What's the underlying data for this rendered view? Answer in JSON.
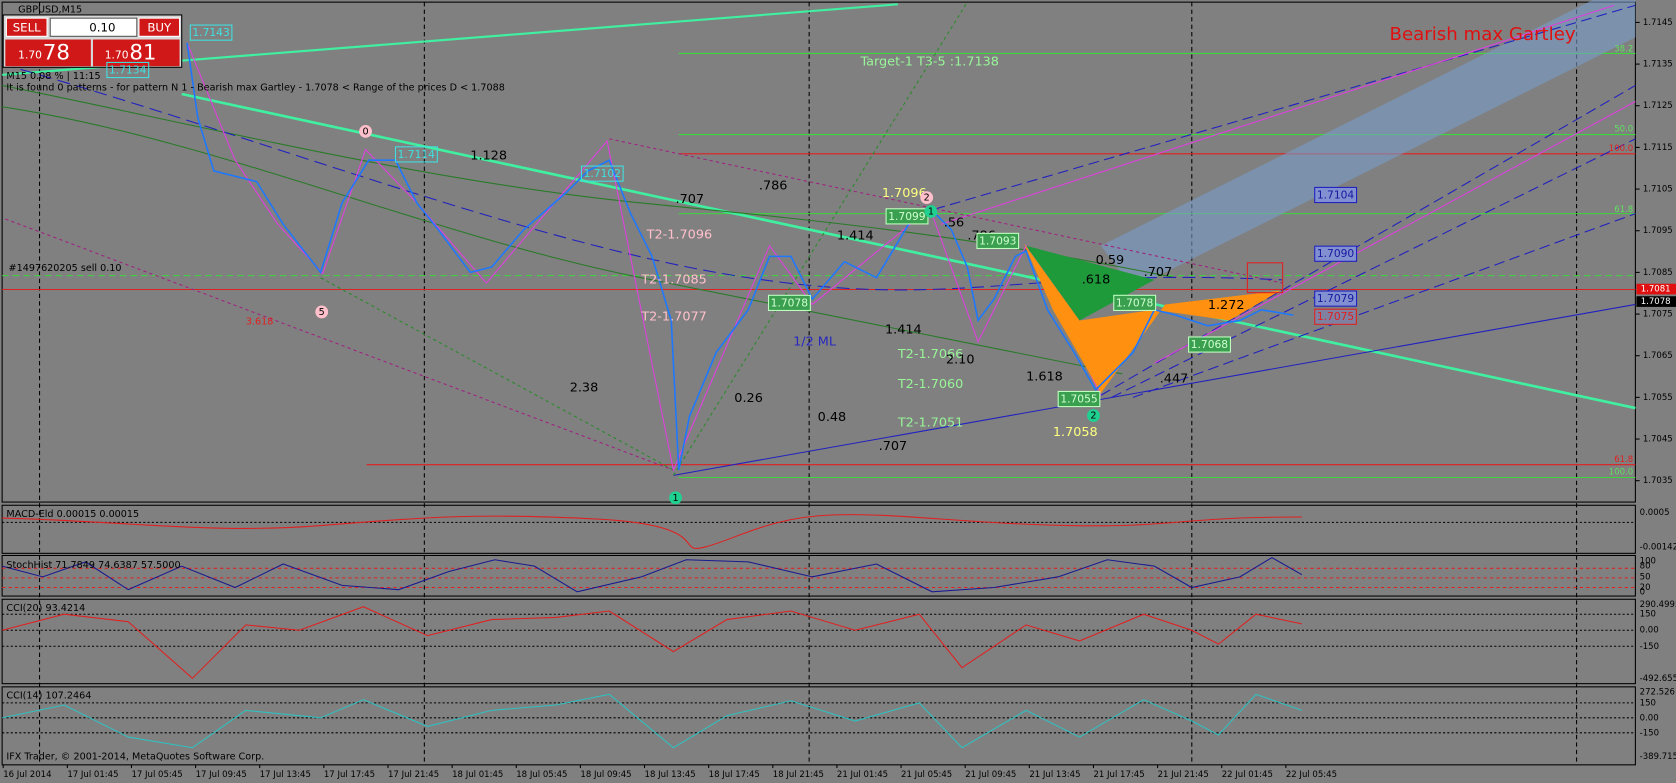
{
  "window": {
    "symbol": "GBPUSD,M15",
    "trade_panel": {
      "sell": "SELL",
      "buy": "BUY",
      "lot": "0.10",
      "sell_small": "1.70",
      "sell_big": "78",
      "buy_small": "1.70",
      "buy_big": "81"
    },
    "info_line_1": "M15 0.08 % | 11:15",
    "info_line_2": "It is found 0 patterns  -  for pattern N 1 - Bearish max Gartley  - 1.7078 < Range of the prices D < 1.7088",
    "pattern_title": "Bearish max Gartley"
  },
  "price_axis": {
    "ticks": [
      1.7145,
      1.7135,
      1.7125,
      1.7115,
      1.7105,
      1.7095,
      1.7085,
      1.7075,
      1.7065,
      1.7055,
      1.7045,
      1.7035
    ],
    "marker_red": 1.7081,
    "marker_black": 1.7078
  },
  "time_axis": [
    "16 Jul 2014",
    "17 Jul 01:45",
    "17 Jul 05:45",
    "17 Jul 09:45",
    "17 Jul 13:45",
    "17 Jul 17:45",
    "17 Jul 21:45",
    "18 Jul 01:45",
    "18 Jul 05:45",
    "18 Jul 09:45",
    "18 Jul 13:45",
    "18 Jul 17:45",
    "18 Jul 21:45",
    "21 Jul 01:45",
    "21 Jul 05:45",
    "21 Jul 09:45",
    "21 Jul 13:45",
    "21 Jul 17:45",
    "21 Jul 21:45",
    "22 Jul 01:45",
    "22 Jul 05:45"
  ],
  "annotations": [
    "Target-1 T3-5 :1.7138",
    "1.128",
    ".707",
    ".786",
    "1.7096",
    "1.414",
    ".56",
    ".786",
    "T2-1.7096",
    "T2-1.7085",
    "T2-1.7077",
    "1.414",
    "1/2 ML",
    "T2-1.7060",
    "T2-1.7051",
    "T2-1.7066",
    "2.10",
    "2.38",
    "0.26",
    "0.48",
    ".707",
    "0.59",
    ".618",
    ".707",
    "1.272",
    "1.618",
    ".447",
    "1.7058",
    "3.618",
    "#1497620205 sell 0.10"
  ],
  "boxed_labels": [
    "1.7143",
    "1.7134",
    "1.7114",
    "1.7102",
    "1.7104",
    "1.7090",
    "1.7079",
    "1.7075",
    "1.7099",
    "1.7093",
    "1.7078",
    "1.7078",
    "1.7068",
    "1.7055"
  ],
  "level_labels": [
    "38.2",
    "50.0",
    "100.0",
    "61.8",
    "61.8",
    "100.0"
  ],
  "pivots": [
    "0",
    "5",
    "2",
    "1",
    "2",
    "1"
  ],
  "indicators": {
    "macd": {
      "label": "MACD-Eld 0.00015 0.00015",
      "scale": [
        "0.0005",
        "-0.00142"
      ]
    },
    "stoch": {
      "label": "StochHist 71.7849 74.6387 57.5000",
      "scale": [
        "100",
        "80",
        "50",
        "20",
        "0"
      ]
    },
    "cci20": {
      "label": "CCI(20) 93.4214",
      "scale": [
        "290.4995",
        "150",
        "0.00",
        "-150",
        "-492.655"
      ]
    },
    "cci14": {
      "label": "CCI(14) 107.2464",
      "scale": [
        "272.5261",
        "150",
        "0.00",
        "-150",
        "-389.7154"
      ]
    }
  },
  "footer": "IFX Trader, © 2001-2014, MetaQuotes Software Corp."
}
